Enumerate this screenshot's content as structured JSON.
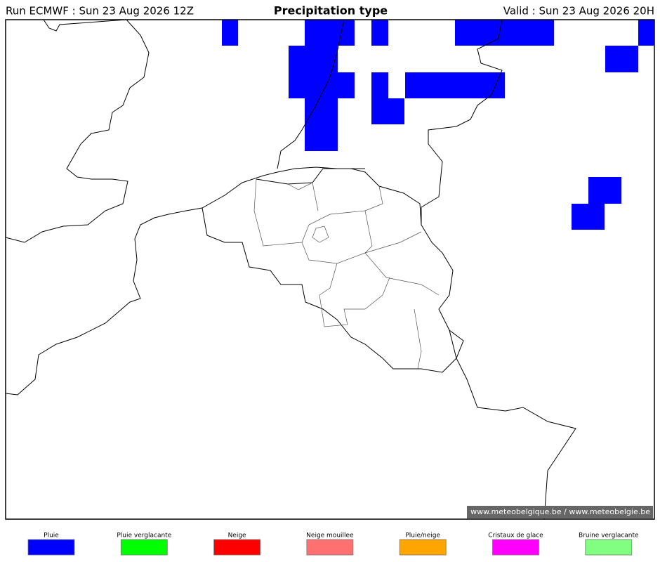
{
  "header": {
    "run": "Run ECMWF : Sun 23 Aug 2026 12Z",
    "title": "Precipitation type",
    "valid": "Valid : Sun 23 Aug 2026 20H"
  },
  "map": {
    "credit": "© www.meteobelgique.be / www.meteobelgie.be"
  },
  "legend": [
    {
      "label": "Pluie",
      "color": "#0000ff"
    },
    {
      "label": "Pluie verglacante",
      "color": "#00ff00"
    },
    {
      "label": "Neige",
      "color": "#ff0000"
    },
    {
      "label": "Neige mouillee",
      "color": "#ff7070"
    },
    {
      "label": "Pluie/neige",
      "color": "#ffa500"
    },
    {
      "label": "Cristaux de glace",
      "color": "#ff00ff"
    },
    {
      "label": "Bruine verglacante",
      "color": "#80ff80"
    }
  ]
}
